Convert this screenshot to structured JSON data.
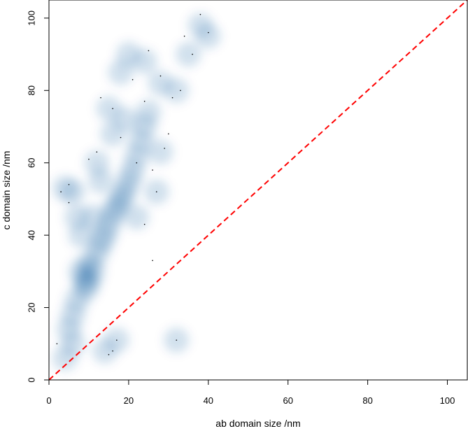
{
  "chart_data": {
    "type": "scatter",
    "style": "smoothed-density",
    "xlabel": "ab domain size /nm",
    "ylabel": "c domain size /nm",
    "xlim": [
      0,
      105
    ],
    "ylim": [
      0,
      105
    ],
    "x_ticks": [
      "0",
      "20",
      "40",
      "60",
      "80",
      "100"
    ],
    "y_ticks": [
      "0",
      "20",
      "40",
      "60",
      "80",
      "100"
    ],
    "density_color": "#08519c",
    "reference_line": {
      "x": [
        0,
        105
      ],
      "y": [
        0,
        105
      ],
      "color": "#ff0000",
      "style": "dashed"
    },
    "density_points": [
      [
        9,
        28
      ],
      [
        10,
        27
      ],
      [
        8,
        30
      ],
      [
        9,
        25
      ],
      [
        11,
        30
      ],
      [
        10,
        32
      ],
      [
        12,
        35
      ],
      [
        13,
        38
      ],
      [
        14,
        40
      ],
      [
        15,
        43
      ],
      [
        16,
        46
      ],
      [
        17,
        48
      ],
      [
        18,
        50
      ],
      [
        19,
        52
      ],
      [
        20,
        55
      ],
      [
        21,
        58
      ],
      [
        22,
        62
      ],
      [
        23,
        66
      ],
      [
        24,
        70
      ],
      [
        25,
        74
      ],
      [
        7,
        22
      ],
      [
        6,
        18
      ],
      [
        5,
        14
      ],
      [
        6,
        10
      ],
      [
        4,
        6
      ],
      [
        8,
        40
      ],
      [
        7,
        45
      ],
      [
        6,
        52
      ],
      [
        4,
        53
      ],
      [
        12,
        60
      ],
      [
        15,
        75
      ],
      [
        18,
        85
      ],
      [
        20,
        90
      ],
      [
        24,
        88
      ],
      [
        28,
        82
      ],
      [
        32,
        80
      ],
      [
        35,
        90
      ],
      [
        38,
        98
      ],
      [
        40,
        95
      ],
      [
        14,
        8
      ],
      [
        17,
        11
      ],
      [
        32,
        11
      ],
      [
        22,
        45
      ],
      [
        27,
        52
      ],
      [
        28,
        63
      ],
      [
        11,
        45
      ],
      [
        13,
        55
      ],
      [
        16,
        68
      ],
      [
        19,
        72
      ]
    ],
    "outlier_points": [
      [
        3,
        52
      ],
      [
        5,
        54
      ],
      [
        5,
        49
      ],
      [
        12,
        63
      ],
      [
        10,
        61
      ],
      [
        16,
        75
      ],
      [
        18,
        67
      ],
      [
        22,
        60
      ],
      [
        26,
        58
      ],
      [
        27,
        52
      ],
      [
        29,
        64
      ],
      [
        31,
        78
      ],
      [
        33,
        80
      ],
      [
        34,
        95
      ],
      [
        36,
        90
      ],
      [
        38,
        101
      ],
      [
        40,
        96
      ],
      [
        25,
        91
      ],
      [
        24,
        77
      ],
      [
        15,
        7
      ],
      [
        16,
        8
      ],
      [
        17,
        11
      ],
      [
        32,
        11
      ],
      [
        26,
        33
      ],
      [
        24,
        43
      ],
      [
        30,
        68
      ],
      [
        2,
        10
      ],
      [
        13,
        78
      ],
      [
        21,
        83
      ],
      [
        28,
        84
      ]
    ]
  }
}
